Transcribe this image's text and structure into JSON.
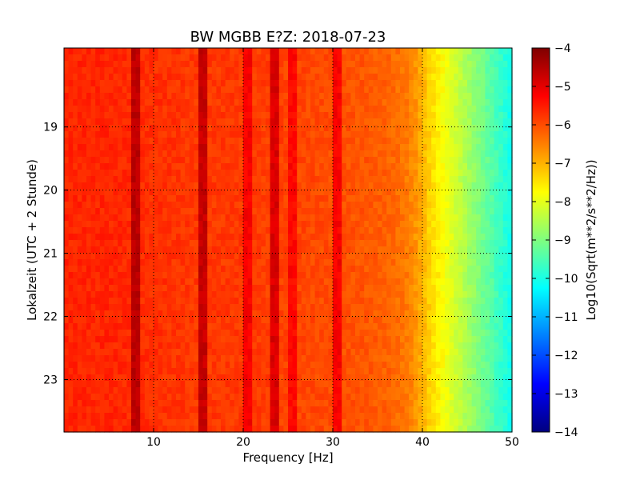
{
  "chart_data": {
    "type": "heatmap",
    "title": "BW MGBB E?Z: 2018-07-23",
    "xlabel": "Frequency [Hz]",
    "ylabel": "Lokalzeit (UTC + 2 Stunde)",
    "xlim": [
      0,
      50
    ],
    "ylim": [
      17.75,
      23.83
    ],
    "y_inverted": true,
    "grid": true,
    "x_ticks": [
      10,
      20,
      30,
      40,
      50
    ],
    "y_ticks": [
      19,
      20,
      21,
      22,
      23
    ],
    "colorbar": {
      "label": "Log10(Sqrt(m**2/s**2/Hz))",
      "range": [
        -14,
        -4
      ],
      "ticks": [
        -4,
        -5,
        -6,
        -7,
        -8,
        -9,
        -10,
        -11,
        -12,
        -13,
        -14
      ],
      "colormap": "jet",
      "colors": [
        "#00007f",
        "#0000ff",
        "#007fff",
        "#00ffff",
        "#7fff7f",
        "#ffff00",
        "#ff7f00",
        "#ff0000",
        "#7f0000"
      ]
    },
    "spectrum_profile": {
      "frequency_hz": [
        0,
        5,
        10,
        15,
        20,
        25,
        30,
        34,
        36,
        38,
        39,
        40,
        41,
        42,
        43,
        44,
        45,
        46,
        47,
        48,
        49,
        50
      ],
      "level": [
        -5.6,
        -5.6,
        -5.7,
        -5.8,
        -5.8,
        -5.9,
        -6.0,
        -6.1,
        -6.2,
        -6.4,
        -6.6,
        -7.0,
        -7.4,
        -7.7,
        -8.0,
        -8.3,
        -8.6,
        -8.9,
        -9.2,
        -9.5,
        -9.8,
        -10.1
      ]
    },
    "spectral_lines_hz": [
      {
        "frequency": 7.9,
        "level": -4.6
      },
      {
        "frequency": 15.6,
        "level": -4.7
      },
      {
        "frequency": 20.3,
        "level": -5.2
      },
      {
        "frequency": 23.7,
        "level": -4.9
      },
      {
        "frequency": 25.3,
        "level": -5.3
      },
      {
        "frequency": 30.3,
        "level": -5.2
      }
    ]
  }
}
